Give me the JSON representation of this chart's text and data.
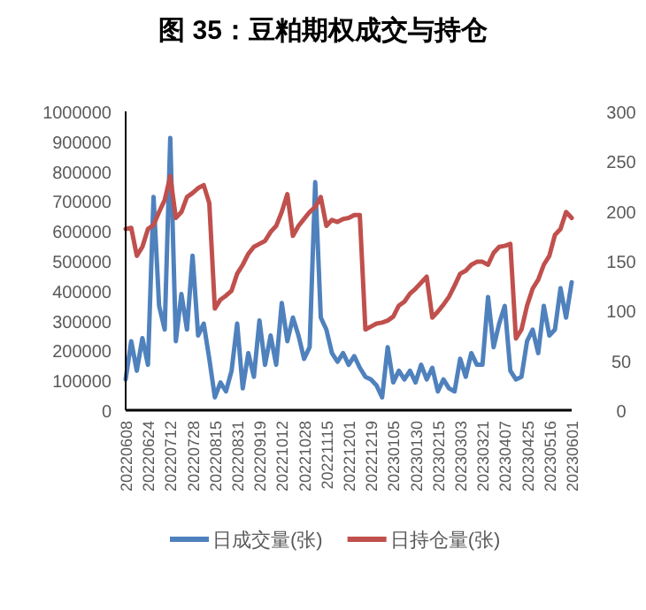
{
  "chart_data": {
    "type": "line",
    "title": "图 35：豆粕期权成交与持仓",
    "categories": [
      "20220608",
      null,
      null,
      null,
      "20220624",
      null,
      null,
      null,
      "20220712",
      null,
      null,
      null,
      "20220728",
      null,
      null,
      null,
      "20220815",
      null,
      null,
      null,
      "20220831",
      null,
      null,
      null,
      "20220919",
      null,
      null,
      null,
      "20221012",
      null,
      null,
      null,
      "20221028",
      null,
      null,
      null,
      "20221115",
      null,
      null,
      null,
      "20221201",
      null,
      null,
      null,
      "20221219",
      null,
      null,
      null,
      "20230105",
      null,
      null,
      null,
      "20230130",
      null,
      null,
      null,
      "20230215",
      null,
      null,
      null,
      "20230303",
      null,
      null,
      null,
      "20230321",
      null,
      null,
      null,
      "20230407",
      null,
      null,
      null,
      "20230425",
      null,
      null,
      null,
      "20230516",
      null,
      null,
      null,
      "20230601"
    ],
    "series": [
      {
        "name": "日成交量(张)",
        "color": "#4f81bd",
        "values": [
          103000,
          231000,
          132000,
          241000,
          152000,
          714000,
          349000,
          270000,
          911000,
          231000,
          389000,
          270000,
          517000,
          250000,
          290000,
          172000,
          43000,
          93000,
          63000,
          132000,
          290000,
          73000,
          191000,
          112000,
          300000,
          152000,
          250000,
          152000,
          359000,
          231000,
          310000,
          250000,
          172000,
          211000,
          763000,
          310000,
          270000,
          191000,
          162000,
          191000,
          152000,
          181000,
          142000,
          112000,
          103000,
          83000,
          43000,
          211000,
          93000,
          132000,
          103000,
          132000,
          93000,
          152000,
          103000,
          142000,
          63000,
          103000,
          73000,
          63000,
          172000,
          112000,
          191000,
          152000,
          152000,
          379000,
          211000,
          290000,
          349000,
          132000,
          103000,
          112000,
          231000,
          270000,
          191000,
          349000,
          250000,
          270000,
          408000,
          310000,
          428000
        ]
      },
      {
        "name": "日持仓量(张)",
        "color": "#c0504d",
        "axis": "y2",
        "values": [
          182,
          183,
          155,
          164,
          182,
          186,
          199,
          211,
          235,
          193,
          199,
          214,
          218,
          223,
          226,
          208,
          102,
          111,
          115,
          120,
          137,
          146,
          157,
          164,
          167,
          170,
          179,
          185,
          199,
          217,
          175,
          185,
          192,
          199,
          204,
          214,
          185,
          191,
          189,
          192,
          193,
          196,
          196,
          81,
          84,
          87,
          88,
          90,
          94,
          105,
          109,
          117,
          122,
          128,
          134,
          93,
          99,
          106,
          114,
          125,
          137,
          140,
          146,
          149,
          149,
          146,
          158,
          164,
          165,
          167,
          72,
          81,
          105,
          122,
          131,
          146,
          155,
          176,
          182,
          199,
          193
        ]
      }
    ],
    "ylim": [
      0,
      1000000
    ],
    "yticks": [
      0,
      100000,
      200000,
      300000,
      400000,
      500000,
      600000,
      700000,
      800000,
      900000,
      1000000
    ],
    "y2lim": [
      0,
      300
    ],
    "y2ticks": [
      0,
      50,
      100,
      150,
      200,
      250,
      300
    ],
    "legend": "bottom",
    "grid": false
  }
}
